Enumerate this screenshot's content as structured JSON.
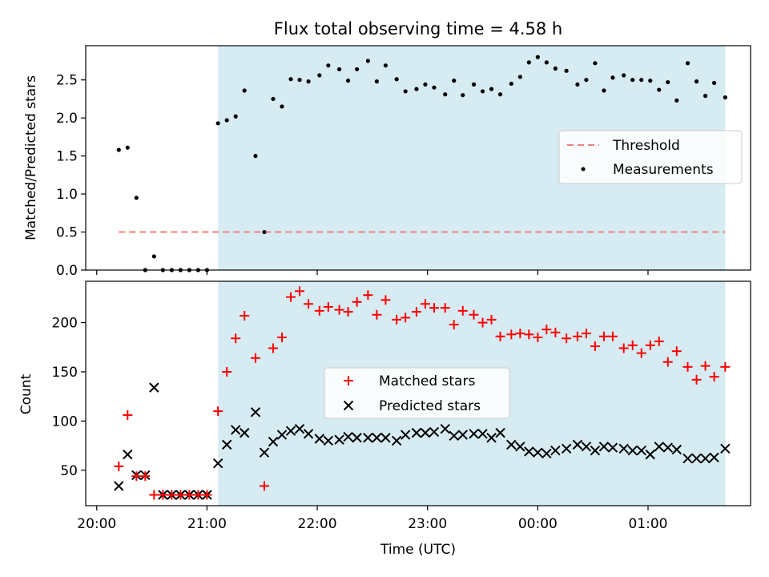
{
  "title": "Flux total observing time = 4.58 h",
  "colors": {
    "threshold": "#f08080",
    "matched": "#ff0000",
    "predicted": "#000000",
    "measurement": "#000000",
    "shade": "#add8e6"
  },
  "chart_data": [
    {
      "type": "scatter",
      "ylabel": "Matched/Predicted stars",
      "xlim": [
        19.9,
        25.93
      ],
      "ylim": [
        0,
        2.95
      ],
      "yticks": [
        "0.0",
        "0.5",
        "1.0",
        "1.5",
        "2.0",
        "2.5"
      ],
      "shade_x": [
        21.1,
        25.7
      ],
      "legend": {
        "placement": "center-right",
        "entries": [
          "Threshold",
          "Measurements"
        ]
      },
      "threshold": {
        "name": "Threshold",
        "y": 0.5,
        "x": [
          20.2,
          25.7
        ]
      },
      "series": [
        {
          "name": "Measurements",
          "x": [
            20.2,
            20.28,
            20.36,
            20.44,
            20.52,
            20.6,
            20.68,
            20.76,
            20.84,
            20.92,
            21.0,
            21.1,
            21.18,
            21.26,
            21.34,
            21.44,
            21.52,
            21.6,
            21.68,
            21.76,
            21.84,
            21.92,
            22.02,
            22.1,
            22.2,
            22.28,
            22.36,
            22.46,
            22.54,
            22.62,
            22.72,
            22.8,
            22.9,
            22.98,
            23.06,
            23.16,
            23.24,
            23.32,
            23.42,
            23.5,
            23.58,
            23.66,
            23.76,
            23.84,
            23.92,
            24.0,
            24.08,
            24.16,
            24.26,
            24.36,
            24.44,
            24.52,
            24.6,
            24.68,
            24.78,
            24.86,
            24.94,
            25.02,
            25.1,
            25.18,
            25.26,
            25.36,
            25.44,
            25.52,
            25.6,
            25.7
          ],
          "y": [
            1.58,
            1.61,
            0.95,
            0.0,
            0.18,
            0.0,
            0.0,
            0.0,
            0.0,
            0.0,
            0.0,
            1.93,
            1.97,
            2.02,
            2.36,
            1.5,
            0.5,
            2.25,
            2.15,
            2.51,
            2.5,
            2.48,
            2.56,
            2.69,
            2.64,
            2.49,
            2.64,
            2.75,
            2.48,
            2.69,
            2.51,
            2.35,
            2.38,
            2.44,
            2.4,
            2.31,
            2.49,
            2.3,
            2.44,
            2.35,
            2.38,
            2.31,
            2.45,
            2.54,
            2.73,
            2.8,
            2.73,
            2.65,
            2.62,
            2.44,
            2.5,
            2.72,
            2.36,
            2.53,
            2.56,
            2.5,
            2.5,
            2.49,
            2.37,
            2.47,
            2.23,
            2.72,
            2.48,
            2.29,
            2.46,
            2.27
          ]
        }
      ]
    },
    {
      "type": "scatter",
      "ylabel": "Count",
      "xlabel": "Time (UTC)",
      "xlim": [
        19.9,
        25.93
      ],
      "ylim": [
        14,
        242
      ],
      "yticks": [
        50,
        100,
        150,
        200
      ],
      "xticks": [
        {
          "value": 20,
          "label": "20:00"
        },
        {
          "value": 21,
          "label": "21:00"
        },
        {
          "value": 22,
          "label": "22:00"
        },
        {
          "value": 23,
          "label": "23:00"
        },
        {
          "value": 24,
          "label": "00:00"
        },
        {
          "value": 25,
          "label": "01:00"
        }
      ],
      "shade_x": [
        21.1,
        25.7
      ],
      "legend": {
        "placement": "center",
        "entries": [
          "Matched stars",
          "Predicted stars"
        ]
      },
      "x": [
        20.2,
        20.28,
        20.36,
        20.44,
        20.52,
        20.6,
        20.68,
        20.76,
        20.84,
        20.92,
        21.0,
        21.1,
        21.18,
        21.26,
        21.34,
        21.44,
        21.52,
        21.6,
        21.68,
        21.76,
        21.84,
        21.92,
        22.02,
        22.1,
        22.2,
        22.28,
        22.36,
        22.46,
        22.54,
        22.62,
        22.72,
        22.8,
        22.9,
        22.98,
        23.06,
        23.16,
        23.24,
        23.32,
        23.42,
        23.5,
        23.58,
        23.66,
        23.76,
        23.84,
        23.92,
        24.0,
        24.08,
        24.16,
        24.26,
        24.36,
        24.44,
        24.52,
        24.6,
        24.68,
        24.78,
        24.86,
        24.94,
        25.02,
        25.1,
        25.18,
        25.26,
        25.36,
        25.44,
        25.52,
        25.6,
        25.7
      ],
      "series": [
        {
          "name": "Matched stars",
          "values": [
            54,
            106,
            44,
            44,
            25,
            25,
            25,
            25,
            25,
            25,
            25,
            110,
            150,
            184,
            207,
            164,
            34,
            174,
            185,
            226,
            232,
            219,
            212,
            216,
            213,
            211,
            221,
            228,
            208,
            223,
            203,
            205,
            211,
            219,
            215,
            215,
            198,
            212,
            208,
            200,
            203,
            186,
            188,
            189,
            188,
            185,
            193,
            190,
            184,
            186,
            189,
            176,
            186,
            186,
            174,
            177,
            169,
            177,
            181,
            160,
            171,
            155,
            142,
            156,
            145,
            155
          ]
        },
        {
          "name": "Predicted stars",
          "values": [
            34,
            66,
            45,
            45,
            134,
            25,
            25,
            25,
            25,
            25,
            25,
            57,
            76,
            91,
            88,
            109,
            68,
            79,
            86,
            90,
            92,
            87,
            82,
            80,
            81,
            84,
            83,
            83,
            83,
            83,
            80,
            86,
            88,
            88,
            89,
            92,
            85,
            86,
            87,
            87,
            83,
            88,
            76,
            74,
            69,
            68,
            67,
            70,
            72,
            76,
            74,
            70,
            74,
            73,
            72,
            70,
            70,
            66,
            74,
            73,
            71,
            62,
            62,
            62,
            63,
            72
          ]
        }
      ]
    }
  ]
}
